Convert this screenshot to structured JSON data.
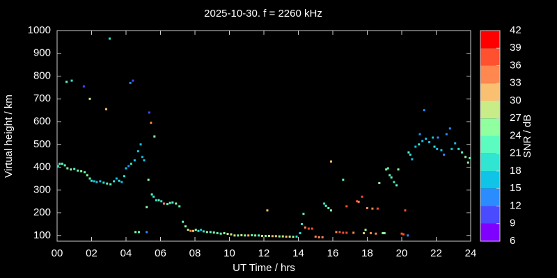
{
  "chart_data": {
    "type": "scatter",
    "title": "2025-10-30. f = 2260 kHz",
    "xlabel": "UT Time / hrs",
    "ylabel": "Virtual height / km",
    "xlim": [
      0,
      24
    ],
    "ylim": [
      75,
      1000
    ],
    "xticks": [
      {
        "value": 0,
        "label": "00"
      },
      {
        "value": 2,
        "label": "02"
      },
      {
        "value": 4,
        "label": "04"
      },
      {
        "value": 6,
        "label": "06"
      },
      {
        "value": 8,
        "label": "08"
      },
      10,
      12,
      14,
      16,
      18,
      20,
      22,
      24
    ],
    "yticks": [
      100,
      200,
      300,
      400,
      500,
      600,
      700,
      800,
      900,
      1000
    ],
    "colorbar": {
      "label": "SNR / dB",
      "lim": [
        6,
        42
      ],
      "ticks": [
        6,
        9,
        12,
        15,
        18,
        21,
        24,
        27,
        30,
        33,
        36,
        39,
        42
      ],
      "colors": [
        "#8000ff",
        "#4a4aff",
        "#2a8cff",
        "#10c4e8",
        "#30e6d2",
        "#5cfcc0",
        "#90ffa0",
        "#c8ec88",
        "#f8c070",
        "#ff8850",
        "#ff5030",
        "#ff0000"
      ]
    },
    "x": [
      0.05,
      0.15,
      0.3,
      0.45,
      0.6,
      0.8,
      1.0,
      1.2,
      1.4,
      1.6,
      1.75,
      1.9,
      2.0,
      2.15,
      2.3,
      2.5,
      2.7,
      2.9,
      3.1,
      3.3,
      3.45,
      3.6,
      3.75,
      3.9,
      4.0,
      4.15,
      4.3,
      4.5,
      4.7,
      4.85,
      4.95,
      5.05,
      5.2,
      5.3,
      5.5,
      5.6,
      5.75,
      5.9,
      6.05,
      6.2,
      6.4,
      6.55,
      6.7,
      6.9,
      7.1,
      7.3,
      7.45,
      7.6,
      7.75,
      7.9,
      8.05,
      8.2,
      8.35,
      8.5,
      8.7,
      8.9,
      9.1,
      9.3,
      9.5,
      9.7,
      9.9,
      10.1,
      10.3,
      10.5,
      10.7,
      10.9,
      11.1,
      11.3,
      11.5,
      11.7,
      11.9,
      12.1,
      12.3,
      12.5,
      12.7,
      12.9,
      13.1,
      13.3,
      13.5,
      13.7,
      13.9,
      0.55,
      0.85,
      1.55,
      1.9,
      2.85,
      3.05,
      4.25,
      4.4,
      5.35,
      5.45,
      5.65,
      4.55,
      4.75,
      5.2,
      12.2,
      14.1,
      14.2,
      14.3,
      14.4,
      14.6,
      14.8,
      15.0,
      15.2,
      15.4,
      15.5,
      15.6,
      15.75,
      15.9,
      15.9,
      16.2,
      16.4,
      16.6,
      16.8,
      16.6,
      16.8,
      17.2,
      17.4,
      17.5,
      17.7,
      17.8,
      17.9,
      18.0,
      18.2,
      18.3,
      18.5,
      18.6,
      18.7,
      18.9,
      19.0,
      19.1,
      19.2,
      19.3,
      19.4,
      19.55,
      19.7,
      19.8,
      20.0,
      20.1,
      20.2,
      20.35,
      20.4,
      20.6,
      20.8,
      21.0,
      21.2,
      21.3,
      21.4,
      21.6,
      21.8,
      21.9,
      22.1,
      22.3,
      22.45,
      22.6,
      22.8,
      22.9,
      23.1,
      23.3,
      23.5,
      23.7,
      23.85,
      23.95,
      21.05,
      22.05,
      20.5
    ],
    "values": [
      405,
      415,
      415,
      408,
      395,
      390,
      392,
      385,
      382,
      378,
      365,
      350,
      340,
      338,
      335,
      338,
      332,
      328,
      325,
      338,
      350,
      340,
      335,
      360,
      395,
      405,
      415,
      430,
      470,
      500,
      445,
      430,
      225,
      345,
      280,
      270,
      255,
      255,
      250,
      240,
      238,
      243,
      245,
      240,
      228,
      160,
      140,
      125,
      120,
      120,
      125,
      120,
      125,
      118,
      115,
      115,
      113,
      110,
      108,
      110,
      107,
      105,
      100,
      100,
      101,
      100,
      100,
      101,
      100,
      100,
      98,
      98,
      98,
      97,
      97,
      96,
      96,
      95,
      95,
      94,
      95,
      775,
      780,
      755,
      700,
      655,
      965,
      770,
      780,
      640,
      595,
      535,
      115,
      115,
      115,
      210,
      110,
      150,
      195,
      135,
      130,
      130,
      95,
      92,
      92,
      240,
      230,
      220,
      210,
      425,
      115,
      115,
      112,
      112,
      345,
      228,
      112,
      250,
      248,
      270,
      110,
      125,
      220,
      110,
      218,
      108,
      218,
      330,
      110,
      110,
      390,
      395,
      365,
      355,
      335,
      320,
      390,
      108,
      105,
      210,
      100,
      465,
      435,
      490,
      500,
      515,
      650,
      525,
      510,
      530,
      490,
      530,
      475,
      455,
      545,
      570,
      480,
      505,
      480,
      465,
      445,
      420,
      440,
      545,
      480,
      455
    ],
    "c": [
      20,
      21,
      22,
      22,
      24,
      24,
      23,
      23,
      24,
      23,
      24,
      22,
      18,
      15,
      17,
      16,
      18,
      22,
      23,
      19,
      16,
      18,
      17,
      20,
      16,
      14,
      18,
      17,
      16,
      15,
      16,
      15,
      25,
      24,
      21,
      20,
      19,
      21,
      20,
      33,
      22,
      21,
      23,
      24,
      22,
      22,
      25,
      27,
      34,
      30,
      26,
      19,
      17,
      20,
      25,
      22,
      24,
      22,
      21,
      24,
      28,
      27,
      29,
      25,
      27,
      24,
      30,
      22,
      26,
      21,
      28,
      24,
      27,
      30,
      31,
      25,
      28,
      30,
      27,
      25,
      19,
      21,
      20,
      9,
      28,
      30,
      20,
      12,
      9,
      9,
      33,
      24,
      24,
      22,
      12,
      31,
      18,
      20,
      22,
      35,
      37,
      36,
      33,
      34,
      33,
      20,
      21,
      22,
      24,
      32,
      35,
      36,
      37,
      36,
      22,
      36,
      35,
      36,
      35,
      38,
      30,
      24,
      34,
      33,
      33,
      34,
      36,
      24,
      25,
      24,
      24,
      23,
      22,
      21,
      20,
      21,
      24,
      36,
      37,
      36,
      14,
      22,
      16,
      17,
      18,
      17,
      14,
      16,
      17,
      15,
      18,
      14,
      16,
      12,
      14,
      13,
      15,
      16,
      20,
      22,
      24,
      25,
      22,
      14,
      16,
      20
    ]
  }
}
